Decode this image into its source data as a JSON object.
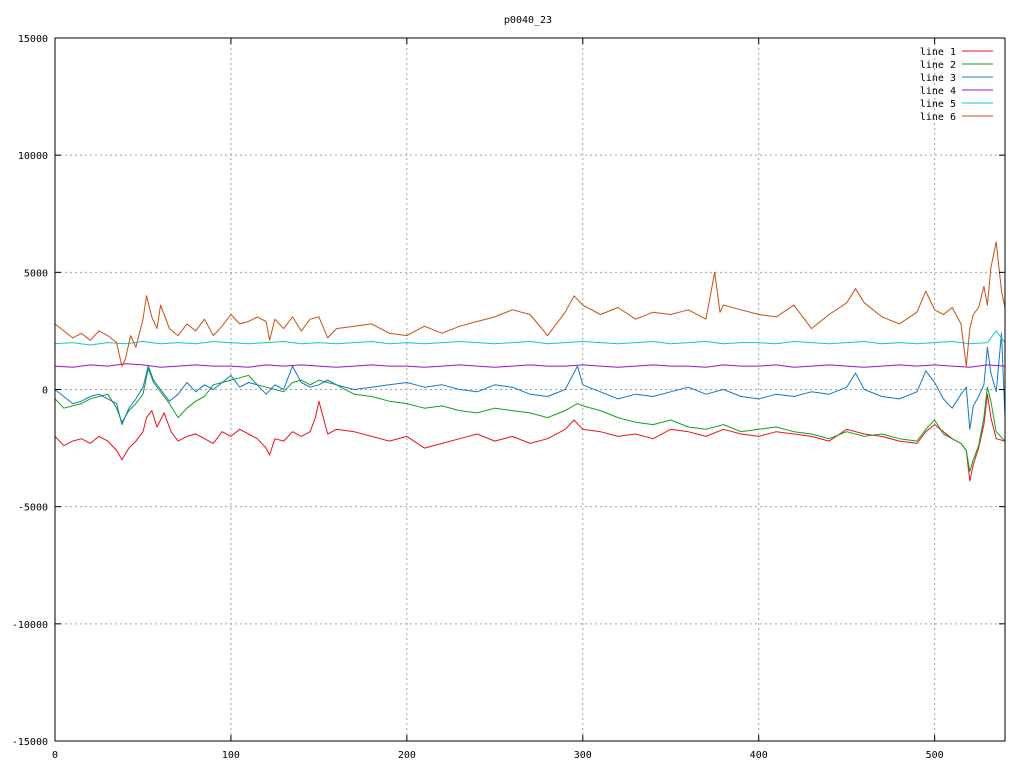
{
  "chart_data": {
    "type": "line",
    "title": "p0040_23",
    "xlabel": "",
    "ylabel": "",
    "xlim": [
      0,
      540
    ],
    "ylim": [
      -15000,
      15000
    ],
    "x_ticks": [
      0,
      100,
      200,
      300,
      400,
      500
    ],
    "y_ticks": [
      -15000,
      -10000,
      -5000,
      0,
      5000,
      10000,
      15000
    ],
    "grid": true,
    "legend_position": "top-right",
    "series": [
      {
        "name": "line 1",
        "color": "#e8141e",
        "x": [
          0,
          5,
          10,
          15,
          20,
          25,
          30,
          35,
          38,
          42,
          46,
          50,
          52,
          55,
          58,
          62,
          66,
          70,
          75,
          80,
          85,
          90,
          95,
          100,
          105,
          110,
          115,
          120,
          122,
          125,
          130,
          135,
          140,
          145,
          148,
          150,
          155,
          160,
          170,
          180,
          190,
          200,
          210,
          220,
          230,
          240,
          250,
          260,
          270,
          280,
          290,
          295,
          300,
          310,
          320,
          330,
          340,
          350,
          360,
          370,
          380,
          390,
          400,
          410,
          420,
          430,
          440,
          450,
          460,
          470,
          480,
          490,
          495,
          500,
          505,
          510,
          515,
          518,
          520,
          522,
          525,
          528,
          530,
          532,
          535,
          540
        ],
        "y": [
          -2000,
          -2400,
          -2200,
          -2100,
          -2300,
          -2000,
          -2200,
          -2600,
          -3000,
          -2500,
          -2200,
          -1800,
          -1200,
          -900,
          -1600,
          -1000,
          -1800,
          -2200,
          -2000,
          -1900,
          -2100,
          -2300,
          -1800,
          -2000,
          -1700,
          -1900,
          -2100,
          -2500,
          -2800,
          -2100,
          -2200,
          -1800,
          -2000,
          -1800,
          -1200,
          -500,
          -1900,
          -1700,
          -1800,
          -2000,
          -2200,
          -2000,
          -2500,
          -2300,
          -2100,
          -1900,
          -2200,
          -2000,
          -2300,
          -2100,
          -1700,
          -1300,
          -1700,
          -1800,
          -2000,
          -1900,
          -2100,
          -1700,
          -1800,
          -2000,
          -1700,
          -1900,
          -2000,
          -1800,
          -1900,
          -2000,
          -2200,
          -1700,
          -1900,
          -2000,
          -2200,
          -2300,
          -1800,
          -1500,
          -1800,
          -2100,
          -2300,
          -2600,
          -3900,
          -3200,
          -2500,
          -1500,
          -200,
          -1200,
          -2100,
          -2200
        ]
      },
      {
        "name": "line 2",
        "color": "#14a01e",
        "x": [
          0,
          5,
          10,
          15,
          20,
          25,
          30,
          35,
          38,
          42,
          46,
          50,
          53,
          56,
          60,
          65,
          70,
          75,
          80,
          85,
          90,
          95,
          100,
          105,
          110,
          115,
          120,
          125,
          130,
          135,
          140,
          145,
          150,
          155,
          160,
          170,
          180,
          190,
          200,
          210,
          220,
          230,
          240,
          250,
          260,
          270,
          280,
          290,
          297,
          300,
          310,
          320,
          330,
          340,
          350,
          360,
          370,
          380,
          390,
          400,
          410,
          420,
          430,
          440,
          450,
          460,
          470,
          480,
          490,
          495,
          500,
          505,
          510,
          515,
          518,
          520,
          522,
          525,
          528,
          530,
          532,
          535,
          540
        ],
        "y": [
          -400,
          -800,
          -700,
          -600,
          -400,
          -300,
          -200,
          -800,
          -1400,
          -900,
          -600,
          -200,
          900,
          300,
          -100,
          -600,
          -1200,
          -800,
          -500,
          -300,
          200,
          300,
          400,
          500,
          600,
          200,
          100,
          0,
          -100,
          300,
          400,
          200,
          400,
          300,
          200,
          -200,
          -300,
          -500,
          -600,
          -800,
          -700,
          -900,
          -1000,
          -800,
          -900,
          -1000,
          -1200,
          -900,
          -600,
          -700,
          -900,
          -1200,
          -1400,
          -1500,
          -1300,
          -1600,
          -1700,
          -1500,
          -1800,
          -1700,
          -1600,
          -1800,
          -1900,
          -2100,
          -1800,
          -2000,
          -1900,
          -2100,
          -2200,
          -1700,
          -1300,
          -1900,
          -2100,
          -2300,
          -2600,
          -3500,
          -3000,
          -2400,
          -1200,
          100,
          -500,
          -1800,
          -2200
        ]
      },
      {
        "name": "line 3",
        "color": "#1478c8",
        "x": [
          0,
          5,
          10,
          15,
          20,
          25,
          30,
          35,
          38,
          42,
          46,
          50,
          53,
          56,
          60,
          65,
          70,
          75,
          80,
          85,
          90,
          95,
          100,
          105,
          110,
          115,
          120,
          125,
          130,
          135,
          140,
          145,
          150,
          155,
          160,
          170,
          180,
          190,
          200,
          210,
          220,
          230,
          240,
          250,
          260,
          270,
          280,
          290,
          297,
          300,
          310,
          320,
          330,
          340,
          350,
          360,
          370,
          380,
          390,
          400,
          410,
          420,
          430,
          440,
          450,
          455,
          460,
          470,
          480,
          490,
          495,
          500,
          505,
          510,
          515,
          518,
          520,
          522,
          525,
          528,
          530,
          532,
          535,
          538,
          540
        ],
        "y": [
          0,
          -300,
          -600,
          -500,
          -300,
          -200,
          -400,
          -600,
          -1500,
          -800,
          -400,
          100,
          1000,
          400,
          0,
          -500,
          -200,
          300,
          -100,
          200,
          0,
          300,
          600,
          100,
          300,
          200,
          -200,
          200,
          0,
          1000,
          300,
          100,
          200,
          400,
          200,
          0,
          100,
          200,
          300,
          100,
          200,
          0,
          -100,
          200,
          100,
          -200,
          -300,
          0,
          1000,
          200,
          -100,
          -400,
          -200,
          -300,
          -100,
          100,
          -200,
          0,
          -300,
          -400,
          -200,
          -300,
          -100,
          -200,
          100,
          700,
          0,
          -300,
          -400,
          -100,
          800,
          300,
          -400,
          -800,
          -200,
          100,
          -1700,
          -700,
          -300,
          200,
          1800,
          700,
          -100,
          2400,
          -1200
        ]
      },
      {
        "name": "line 4",
        "color": "#9b14c8",
        "x": [
          0,
          10,
          20,
          30,
          40,
          50,
          60,
          70,
          80,
          90,
          100,
          110,
          120,
          130,
          140,
          150,
          160,
          170,
          180,
          190,
          200,
          210,
          220,
          230,
          240,
          250,
          260,
          270,
          280,
          290,
          300,
          310,
          320,
          330,
          340,
          350,
          360,
          370,
          380,
          390,
          400,
          410,
          420,
          430,
          440,
          450,
          460,
          470,
          480,
          490,
          500,
          510,
          520,
          530,
          540
        ],
        "y": [
          1000,
          950,
          1050,
          1000,
          1100,
          1050,
          950,
          1000,
          1050,
          1000,
          1000,
          950,
          1050,
          1000,
          1050,
          1000,
          950,
          1000,
          1050,
          1000,
          1000,
          950,
          1000,
          1050,
          1000,
          950,
          1000,
          1050,
          1000,
          1000,
          1050,
          1000,
          950,
          1000,
          1050,
          1000,
          1000,
          950,
          1050,
          1000,
          1000,
          1050,
          950,
          1000,
          1050,
          1000,
          950,
          1000,
          1050,
          1000,
          1050,
          1000,
          950,
          1050,
          1000
        ]
      },
      {
        "name": "line 5",
        "color": "#14c8c8",
        "x": [
          0,
          10,
          20,
          30,
          40,
          50,
          60,
          70,
          80,
          90,
          100,
          110,
          120,
          130,
          140,
          150,
          160,
          170,
          180,
          190,
          200,
          210,
          220,
          230,
          240,
          250,
          260,
          270,
          280,
          290,
          300,
          310,
          320,
          330,
          340,
          350,
          360,
          370,
          380,
          390,
          400,
          410,
          420,
          430,
          440,
          450,
          460,
          470,
          480,
          490,
          500,
          510,
          520,
          530,
          535,
          540
        ],
        "y": [
          1950,
          2000,
          1900,
          2000,
          1950,
          2050,
          1950,
          2000,
          1950,
          2050,
          2000,
          1950,
          2000,
          2050,
          1950,
          2000,
          1950,
          2000,
          2050,
          1950,
          2000,
          1950,
          2000,
          2050,
          2000,
          1950,
          2000,
          2050,
          1950,
          2000,
          2050,
          2000,
          1950,
          2000,
          2050,
          1950,
          2000,
          2050,
          1950,
          2000,
          2000,
          1950,
          2050,
          2000,
          1950,
          2000,
          2050,
          1950,
          2000,
          1950,
          2000,
          2050,
          1950,
          2000,
          2500,
          2000
        ]
      },
      {
        "name": "line 6",
        "color": "#c85014",
        "x": [
          0,
          5,
          10,
          15,
          20,
          25,
          30,
          35,
          38,
          40,
          43,
          46,
          50,
          52,
          55,
          58,
          60,
          65,
          70,
          75,
          80,
          85,
          90,
          95,
          100,
          105,
          110,
          115,
          120,
          122,
          125,
          130,
          135,
          140,
          145,
          150,
          155,
          160,
          170,
          180,
          190,
          200,
          210,
          220,
          230,
          240,
          250,
          260,
          270,
          280,
          290,
          295,
          300,
          310,
          320,
          330,
          340,
          350,
          360,
          370,
          375,
          378,
          380,
          390,
          400,
          410,
          420,
          430,
          440,
          450,
          455,
          460,
          470,
          480,
          490,
          495,
          500,
          505,
          510,
          515,
          518,
          520,
          522,
          525,
          528,
          530,
          532,
          535,
          538,
          540
        ],
        "y": [
          2800,
          2500,
          2200,
          2400,
          2100,
          2500,
          2300,
          2000,
          1000,
          1300,
          2300,
          1800,
          3000,
          4000,
          3100,
          2600,
          3600,
          2600,
          2300,
          2800,
          2500,
          3000,
          2300,
          2700,
          3200,
          2800,
          2900,
          3100,
          2900,
          2100,
          3000,
          2600,
          3100,
          2500,
          3000,
          3100,
          2200,
          2600,
          2700,
          2800,
          2400,
          2300,
          2700,
          2400,
          2700,
          2900,
          3100,
          3400,
          3200,
          2300,
          3300,
          4000,
          3600,
          3200,
          3500,
          3000,
          3300,
          3200,
          3400,
          3000,
          5000,
          3300,
          3600,
          3400,
          3200,
          3100,
          3600,
          2600,
          3200,
          3700,
          4300,
          3700,
          3100,
          2800,
          3300,
          4200,
          3400,
          3200,
          3500,
          2800,
          1000,
          2600,
          3200,
          3500,
          4400,
          3600,
          5200,
          6300,
          4200,
          3500
        ]
      }
    ]
  }
}
